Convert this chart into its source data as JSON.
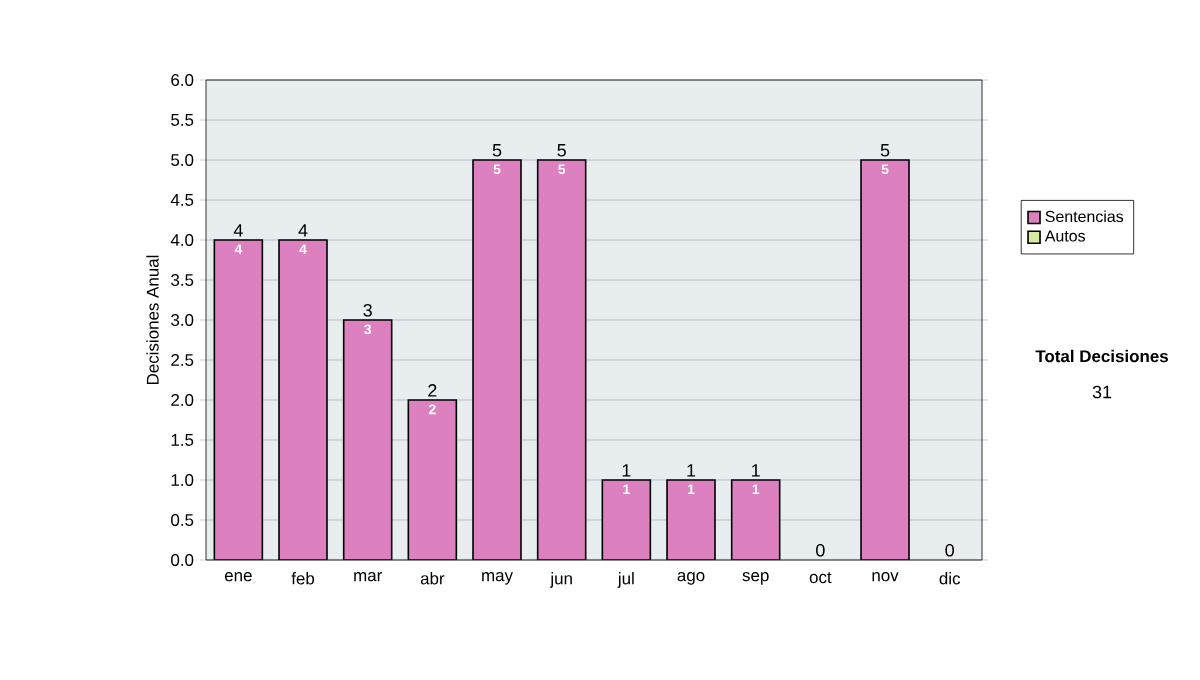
{
  "chart_data": {
    "type": "bar",
    "stacked": true,
    "ylabel": "Decisiones Anual",
    "categories": [
      "ene",
      "feb",
      "mar",
      "abr",
      "may",
      "jun",
      "jul",
      "ago",
      "sep",
      "oct",
      "nov",
      "dic"
    ],
    "series": [
      {
        "name": "Sentencias",
        "color": "#dd80c0",
        "values": [
          4,
          4,
          3,
          2,
          5,
          5,
          1,
          1,
          1,
          0,
          5,
          0
        ],
        "value_labels": [
          "4",
          "4",
          "3",
          "2",
          "5",
          "5",
          "1",
          "1",
          "1",
          null,
          "5",
          null
        ]
      },
      {
        "name": "Autos",
        "color": "#d8eca0",
        "values": [
          0,
          0,
          0,
          0,
          0,
          0,
          0,
          0,
          0,
          0,
          0,
          0
        ]
      }
    ],
    "totals": [
      "4",
      "4",
      "3",
      "2",
      "5",
      "5",
      "1",
      "1",
      "1",
      "0",
      "5",
      "0"
    ],
    "ylim": [
      0,
      6
    ],
    "yticks": [
      {
        "value": 0,
        "label": "0.0"
      },
      {
        "value": 0.5,
        "label": "0.5"
      },
      {
        "value": 1,
        "label": "1.0"
      },
      {
        "value": 1.5,
        "label": "1.5"
      },
      {
        "value": 2,
        "label": "2.0"
      },
      {
        "value": 2.5,
        "label": "2.5"
      },
      {
        "value": 3,
        "label": "3.0"
      },
      {
        "value": 3.5,
        "label": "3.5"
      },
      {
        "value": 4,
        "label": "4.0"
      },
      {
        "value": 4.5,
        "label": "4.5"
      },
      {
        "value": 5,
        "label": "5.0"
      },
      {
        "value": 5.5,
        "label": "5.5"
      },
      {
        "value": 6,
        "label": "6.0"
      }
    ],
    "grid": "y",
    "legend": "right",
    "annotations": [
      "Total Decisiones",
      "31"
    ]
  }
}
